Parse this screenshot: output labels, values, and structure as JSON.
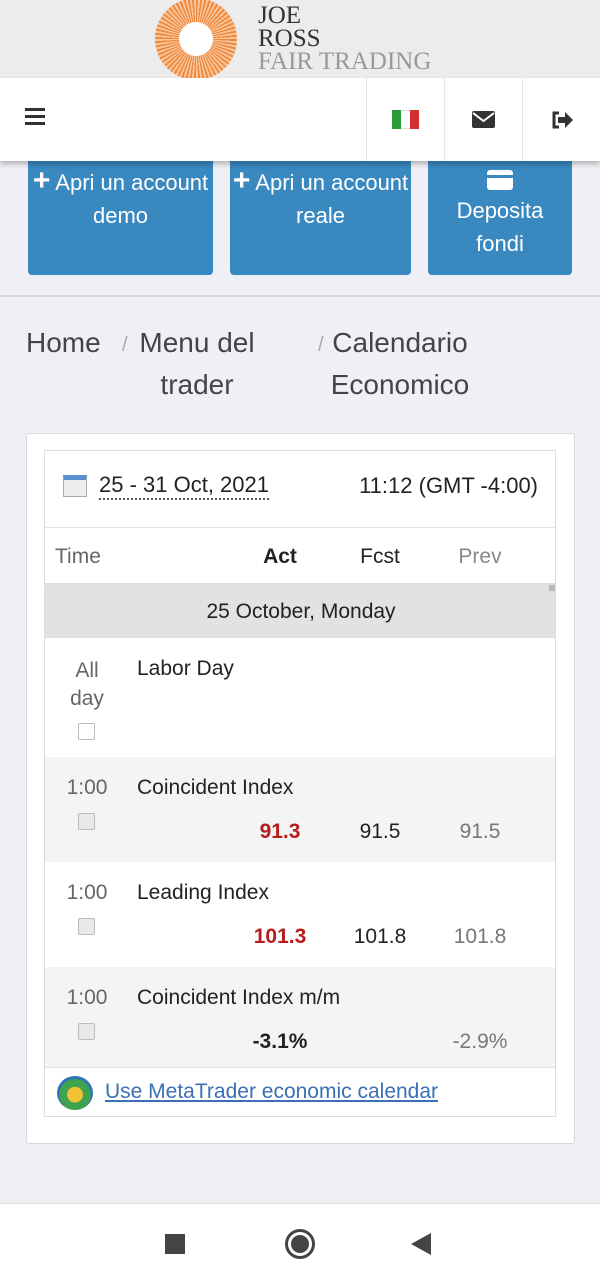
{
  "logo": {
    "line1": "JOE",
    "line2": "ROSS",
    "line3": "FAIR TRADING"
  },
  "nav": {
    "menu_icon": "hamburger-icon",
    "flag_icon": "italy-flag-icon",
    "mail_icon": "envelope-icon",
    "logout_icon": "sign-out-icon"
  },
  "actions": [
    {
      "icon": "plus-icon",
      "label": "Apri un account demo"
    },
    {
      "icon": "plus-icon",
      "label": "Apri un account reale"
    },
    {
      "icon": "credit-card-icon",
      "label": "Deposita fondi"
    }
  ],
  "breadcrumb": [
    "Home",
    "Menu del trader",
    "Calendario Economico"
  ],
  "calendar": {
    "range": "25 - 31 Oct, 2021",
    "time": "11:12 (GMT -4:00)",
    "columns": {
      "time": "Time",
      "act": "Act",
      "fcst": "Fcst",
      "prev": "Prev"
    },
    "day": "25 October, Monday",
    "events": [
      {
        "time": "All day",
        "name": "Labor Day",
        "act": "",
        "fcst": "",
        "prev": ""
      },
      {
        "time": "1:00",
        "name": "Coincident Index",
        "act": "91.3",
        "fcst": "91.5",
        "prev": "91.5",
        "act_color": "#b71c1c"
      },
      {
        "time": "1:00",
        "name": "Leading Index",
        "act": "101.3",
        "fcst": "101.8",
        "prev": "101.8",
        "act_color": "#b71c1c"
      },
      {
        "time": "1:00",
        "name": "Coincident Index m/m",
        "act": "-3.1%",
        "fcst": "",
        "prev": "-2.9%",
        "act_color": "#222222"
      }
    ],
    "link": "Use MetaTrader economic calendar"
  },
  "colors": {
    "button": "#3a88c0",
    "negative": "#b71c1c"
  }
}
